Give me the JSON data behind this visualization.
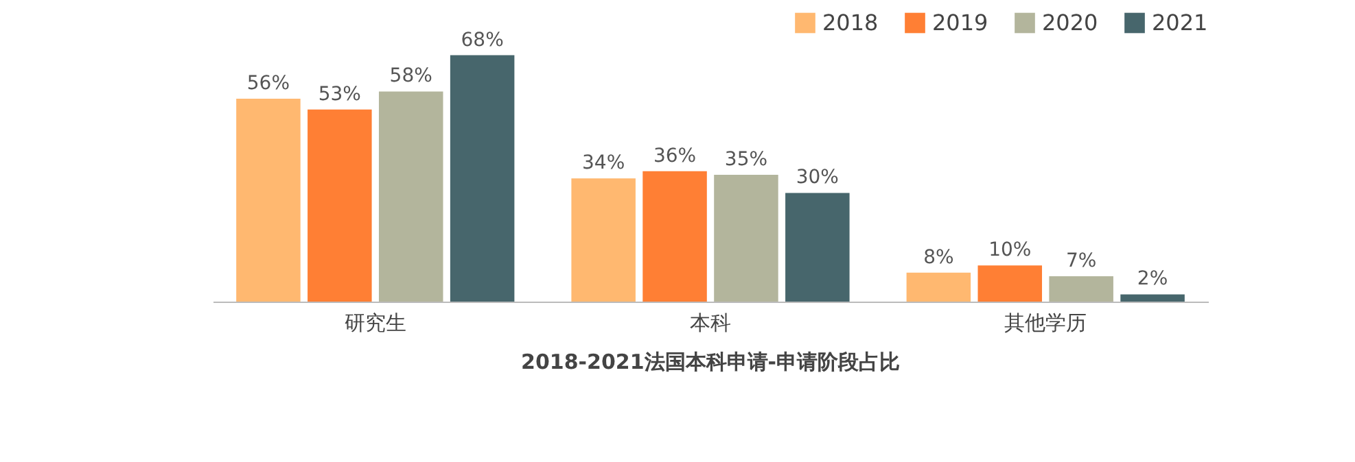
{
  "chart_data": {
    "type": "bar",
    "title": "2018-2021法国本科申请-申请阶段占比",
    "categories": [
      "研究生",
      "本科",
      "其他学历"
    ],
    "series": [
      {
        "name": "2018",
        "color": "#ffb870",
        "values": [
          56,
          34,
          8
        ],
        "value_labels": [
          "56%",
          "34%",
          "8%"
        ]
      },
      {
        "name": "2019",
        "color": "#ff7f34",
        "values": [
          53,
          36,
          10
        ],
        "value_labels": [
          "53%",
          "36%",
          "10%"
        ]
      },
      {
        "name": "2020",
        "color": "#b3b59c",
        "values": [
          58,
          35,
          7
        ],
        "value_labels": [
          "58%",
          "35%",
          "7%"
        ]
      },
      {
        "name": "2021",
        "color": "#47666c",
        "values": [
          68,
          30,
          2
        ],
        "value_labels": [
          "68%",
          "30%",
          "2%"
        ]
      }
    ],
    "legend": "top right",
    "grid": false
  }
}
